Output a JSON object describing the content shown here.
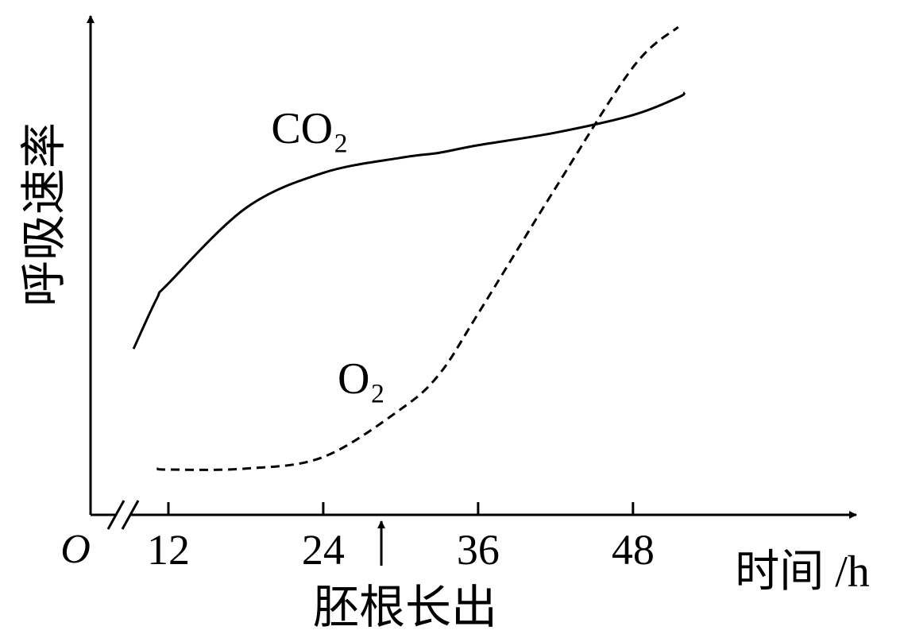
{
  "chart_data": {
    "type": "line",
    "y_label": "呼吸速率",
    "x_label": "时间 /h",
    "origin_label": "O",
    "x": [
      9.3,
      11.1,
      12,
      18,
      24,
      30,
      33,
      36,
      42,
      48,
      51.5,
      52
    ],
    "series": [
      {
        "name": "CO₂",
        "color": "#000",
        "style": "solid",
        "values": [
          33,
          43,
          46,
          61,
          68,
          71,
          72,
          73.5,
          76,
          79.5,
          83,
          84
        ]
      },
      {
        "name": "O₂",
        "color": "#000",
        "style": "dashed",
        "values": [
          null,
          9.2,
          9,
          9.2,
          11.5,
          21,
          28,
          40,
          65,
          89,
          97,
          null
        ]
      }
    ],
    "annotation": {
      "text": "胚根长出",
      "x": 28.5
    },
    "xlim": [
      6,
      65
    ],
    "ylim": [
      0,
      100
    ],
    "xticks": [
      12,
      24,
      36,
      48
    ]
  }
}
